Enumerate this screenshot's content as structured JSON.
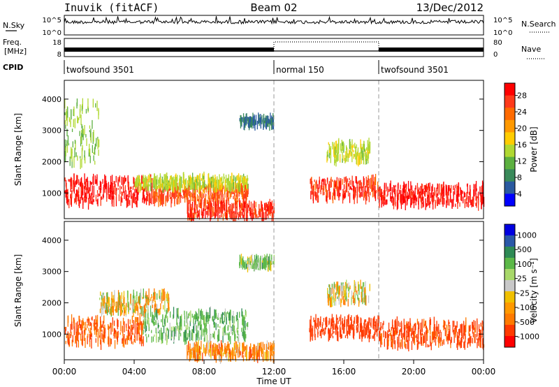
{
  "header": {
    "station": "Inuvik (fitACF)",
    "beam": "Beam 02",
    "date": "13/Dec/2012"
  },
  "noise_panel": {
    "left_label": "N.Sky",
    "right_label": "N.Search",
    "ticks_left": [
      "10^5",
      "10^0"
    ],
    "ticks_right": [
      "10^5",
      "10^0"
    ]
  },
  "freq_panel": {
    "left_label_1": "Freq.",
    "left_label_2": "[MHz]",
    "right_label": "Nave",
    "ticks_left": [
      "18",
      "8"
    ],
    "ticks_right": [
      "80",
      "0"
    ]
  },
  "cpid": {
    "label": "CPID",
    "segments": [
      {
        "name": "twofsound 3501",
        "start_hour": 0
      },
      {
        "name": "normal 150",
        "start_hour": 12
      },
      {
        "name": "twofsound 3501",
        "start_hour": 18
      }
    ]
  },
  "power_panel": {
    "ylabel": "Slant Range [km]",
    "yticks": [
      "4000",
      "3000",
      "2000",
      "1000"
    ],
    "colorbar_label": "Power [dB]",
    "colorbar_ticks": [
      "28",
      "24",
      "20",
      "16",
      "12",
      "8",
      "4"
    ],
    "colorbar_colors": [
      "#ff0000",
      "#ff3a1a",
      "#ff6a00",
      "#ff9900",
      "#ffcc00",
      "#b0d832",
      "#5cb040",
      "#3a8a5a",
      "#2a5aa0",
      "#0000ff"
    ]
  },
  "velocity_panel": {
    "ylabel": "Slant Range [km]",
    "yticks": [
      "4000",
      "3000",
      "2000",
      "1000"
    ],
    "colorbar_label": "Velocity [m s⁻¹]",
    "colorbar_ticks": [
      "1000",
      "500",
      "100",
      "25",
      "-25",
      "-100",
      "-500",
      "-1000"
    ],
    "colorbar_colors": [
      "#0000e0",
      "#2a58a8",
      "#2e8a55",
      "#5cb848",
      "#a8d86a",
      "#c8c8c8",
      "#f0c000",
      "#ff9900",
      "#ff7a00",
      "#ff3a00",
      "#ff0000"
    ]
  },
  "xaxis": {
    "label": "Time UT",
    "ticks": [
      "00:00",
      "04:00",
      "08:00",
      "12:00",
      "16:00",
      "20:00",
      "00:00"
    ]
  },
  "chart_data": [
    {
      "type": "heatmap",
      "title": "Power [dB]",
      "xlabel": "Time UT",
      "ylabel": "Slant Range [km]",
      "xlim": [
        0,
        24
      ],
      "ylim": [
        180,
        4600
      ],
      "clim": [
        0,
        30
      ],
      "regions": [
        {
          "t0": 0.0,
          "t1": 5.0,
          "r0": 650,
          "r1": 1450,
          "value": 28
        },
        {
          "t0": 5.0,
          "t1": 10.5,
          "r0": 700,
          "r1": 1200,
          "value": 24
        },
        {
          "t0": 4.0,
          "t1": 10.5,
          "r0": 1150,
          "r1": 1500,
          "value": 14
        },
        {
          "t0": 7.0,
          "t1": 12.0,
          "r0": 220,
          "r1": 650,
          "value": 26
        },
        {
          "t0": 10.0,
          "t1": 12.0,
          "r0": 3150,
          "r1": 3400,
          "value": 6
        },
        {
          "t0": 14.0,
          "t1": 18.0,
          "r0": 800,
          "r1": 1450,
          "value": 26
        },
        {
          "t0": 15.0,
          "t1": 17.5,
          "r0": 2000,
          "r1": 2600,
          "value": 14
        },
        {
          "t0": 18.0,
          "t1": 24.0,
          "r0": 600,
          "r1": 1250,
          "value": 28
        },
        {
          "t0": 0.0,
          "t1": 2.0,
          "r0": 1900,
          "r1": 3900,
          "value": 12
        }
      ]
    },
    {
      "type": "heatmap",
      "title": "Velocity [m s⁻¹]",
      "xlabel": "Time UT",
      "ylabel": "Slant Range [km]",
      "xlim": [
        0,
        24
      ],
      "ylim": [
        180,
        4600
      ],
      "clim": [
        -1000,
        1000
      ],
      "regions": [
        {
          "t0": 0.0,
          "t1": 4.5,
          "r0": 650,
          "r1": 1500,
          "value": -300
        },
        {
          "t0": 4.5,
          "t1": 10.5,
          "r0": 800,
          "r1": 1700,
          "value": 200
        },
        {
          "t0": 7.0,
          "t1": 12.0,
          "r0": 220,
          "r1": 650,
          "value": -150
        },
        {
          "t0": 10.0,
          "t1": 12.0,
          "r0": 3150,
          "r1": 3400,
          "value": 150
        },
        {
          "t0": 14.0,
          "t1": 18.0,
          "r0": 900,
          "r1": 1500,
          "value": -500
        },
        {
          "t0": 15.0,
          "t1": 17.5,
          "r0": 2000,
          "r1": 2600,
          "value": 0
        },
        {
          "t0": 18.0,
          "t1": 24.0,
          "r0": 600,
          "r1": 1400,
          "value": -400
        },
        {
          "t0": 2.0,
          "t1": 6.0,
          "r0": 1700,
          "r1": 2300,
          "value": 0
        }
      ]
    }
  ]
}
